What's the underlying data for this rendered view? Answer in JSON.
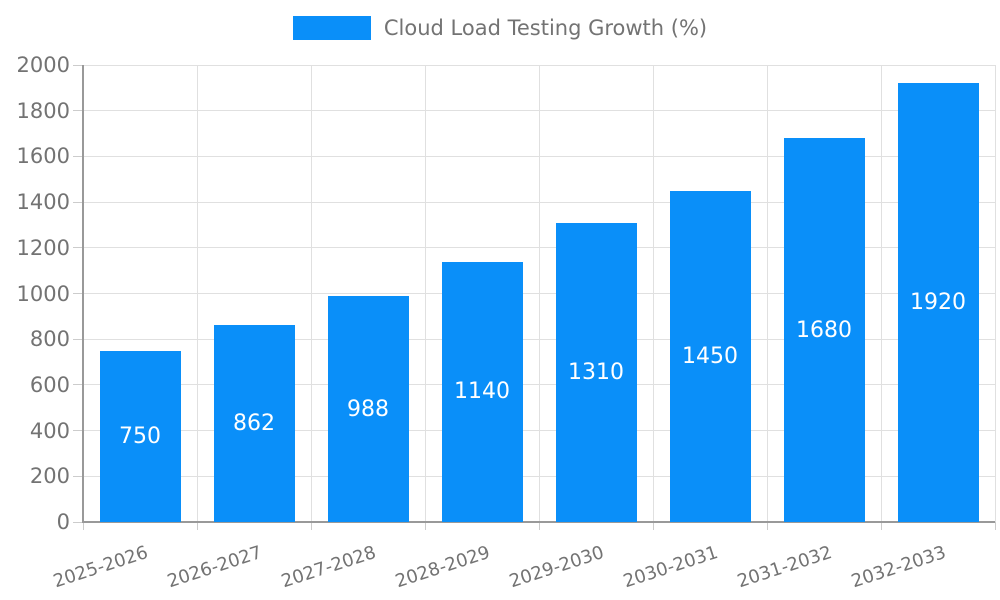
{
  "chart_data": {
    "type": "bar",
    "title": "Cloud Load Testing Growth (%)",
    "series_name": "Cloud Load Testing Growth (%)",
    "categories": [
      "2025-2026",
      "2026-2027",
      "2027-2028",
      "2028-2029",
      "2029-2030",
      "2030-2031",
      "2031-2032",
      "2032-2033"
    ],
    "values": [
      750,
      862,
      988,
      1140,
      1310,
      1450,
      1680,
      1920
    ],
    "xlabel": "",
    "ylabel": "",
    "ylim": [
      0,
      2000
    ],
    "ytick_step": 200,
    "yticks": [
      0,
      200,
      400,
      600,
      800,
      1000,
      1200,
      1400,
      1600,
      1800,
      2000
    ],
    "grid": true,
    "legend_position": "top",
    "x_label_rotation": -18,
    "colors": {
      "bar": "#0a8ff9",
      "value_label": "#ffffff",
      "axis_label": "#737373",
      "legend_label": "#737373",
      "grid_line": "#e0e0e0",
      "axis_line": "#999999",
      "tick": "#cccccc",
      "background": "#ffffff"
    }
  }
}
